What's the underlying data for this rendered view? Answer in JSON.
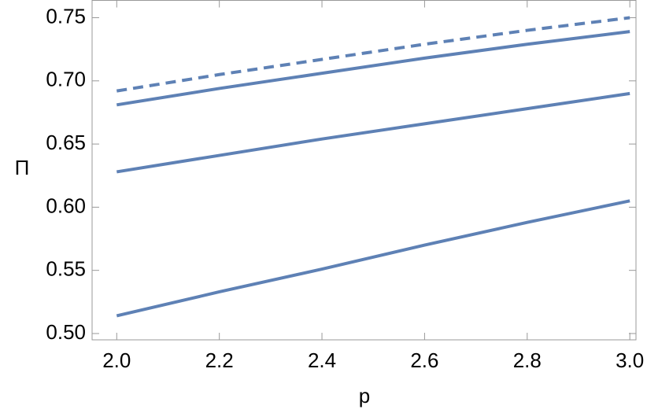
{
  "chart_data": {
    "type": "line",
    "xlabel": "p",
    "ylabel": "Π",
    "x": [
      2.0,
      2.2,
      2.4,
      2.6,
      2.8,
      3.0
    ],
    "series": [
      {
        "color": "#5e81b5",
        "dash": true,
        "values": [
          0.692,
          0.705,
          0.717,
          0.729,
          0.74,
          0.75
        ]
      },
      {
        "color": "#5e81b5",
        "dash": false,
        "values": [
          0.681,
          0.694,
          0.706,
          0.718,
          0.729,
          0.739
        ]
      },
      {
        "color": "#5e81b5",
        "dash": false,
        "values": [
          0.628,
          0.641,
          0.654,
          0.666,
          0.678,
          0.69
        ]
      },
      {
        "color": "#5e81b5",
        "dash": false,
        "values": [
          0.514,
          0.533,
          0.551,
          0.57,
          0.588,
          0.605
        ]
      }
    ],
    "xlim": [
      1.952,
      3.012
    ],
    "ylim": [
      0.495,
      0.7637
    ],
    "xticks": [
      {
        "value": 2,
        "label": "2.0"
      },
      2.2,
      2.4,
      2.6,
      2.8,
      {
        "value": 3,
        "label": "3.0"
      }
    ],
    "yticks": [
      {
        "value": 0.5,
        "label": "0.50"
      },
      0.55,
      {
        "value": 0.6,
        "label": "0.60"
      },
      0.65,
      {
        "value": 0.7,
        "label": "0.70"
      },
      0.75
    ]
  }
}
